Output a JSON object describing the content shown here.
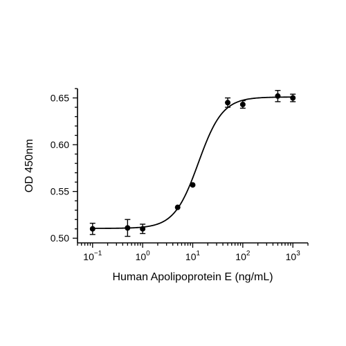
{
  "chart_data": {
    "type": "scatter",
    "xlabel": "Human Apolipoprotein E (ng/mL)",
    "ylabel": "OD 450nm",
    "x_scale": "log",
    "xlim": [
      0.05,
      2000
    ],
    "ylim": [
      0.495,
      0.66
    ],
    "x_ticks": [
      {
        "base": "10",
        "exp": "−1",
        "value": 0.1
      },
      {
        "base": "10",
        "exp": "0",
        "value": 1
      },
      {
        "base": "10",
        "exp": "1",
        "value": 10
      },
      {
        "base": "10",
        "exp": "2",
        "value": 100
      },
      {
        "base": "10",
        "exp": "3",
        "value": 1000
      }
    ],
    "y_ticks": [
      {
        "label": "0.50",
        "value": 0.5
      },
      {
        "label": "0.55",
        "value": 0.55
      },
      {
        "label": "0.60",
        "value": 0.6
      },
      {
        "label": "0.65",
        "value": 0.65
      }
    ],
    "points": [
      {
        "x": 0.1,
        "y": 0.51,
        "err": 0.006
      },
      {
        "x": 0.5,
        "y": 0.511,
        "err": 0.009
      },
      {
        "x": 1,
        "y": 0.51,
        "err": 0.005
      },
      {
        "x": 5,
        "y": 0.533,
        "err": 0
      },
      {
        "x": 10,
        "y": 0.557,
        "err": 0
      },
      {
        "x": 50,
        "y": 0.645,
        "err": 0.005
      },
      {
        "x": 100,
        "y": 0.643,
        "err": 0.004
      },
      {
        "x": 500,
        "y": 0.652,
        "err": 0.006
      },
      {
        "x": 1000,
        "y": 0.65,
        "err": 0.004
      }
    ],
    "fit": {
      "bottom": 0.5105,
      "top": 0.651,
      "ec50": 13,
      "hill": 1.8
    },
    "grid": false,
    "legend": "none"
  }
}
